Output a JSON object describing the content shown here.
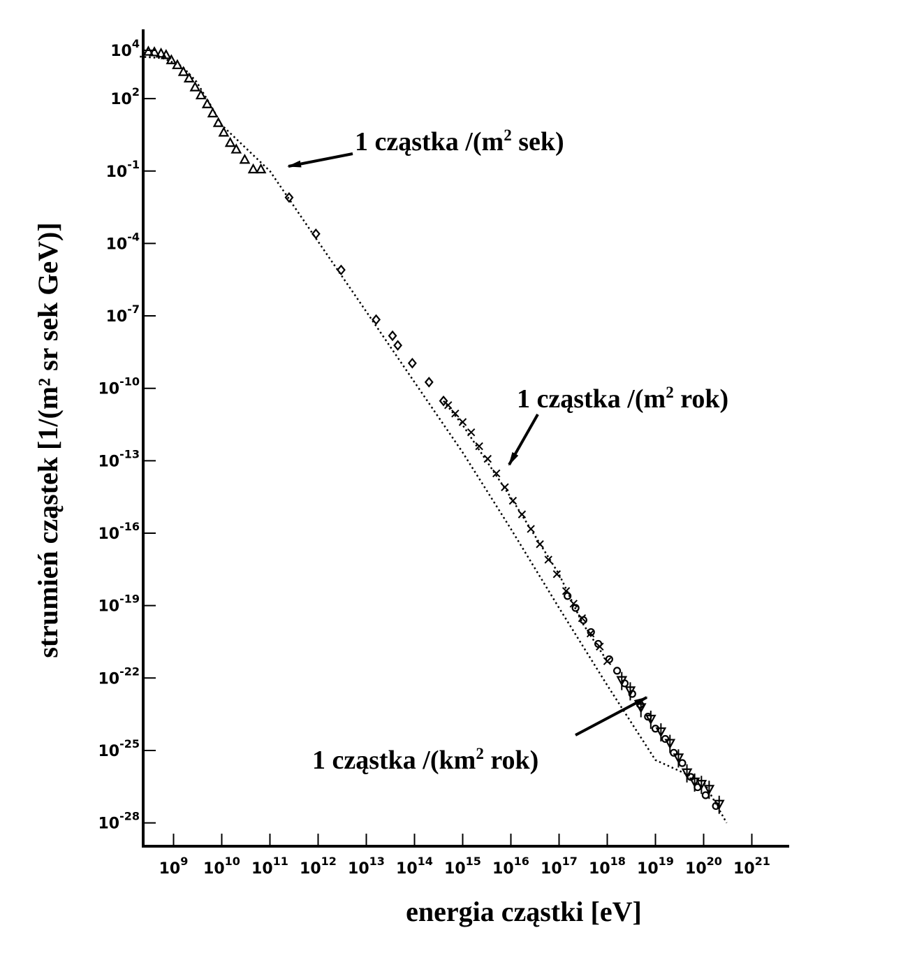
{
  "chart_data": {
    "type": "scatter",
    "title": "",
    "xlabel": "energia cząstki [eV]",
    "ylabel": "strumień cząstek [1/(m² sr sek GeV)]",
    "xscale": "log",
    "yscale": "log",
    "xlim": [
      200000000.0,
      1e+21
    ],
    "ylim": [
      1e-29,
      100000.0
    ],
    "grid": false,
    "legend": "none",
    "x_ticks": [
      {
        "value": 1000000000.0,
        "base": "10",
        "exp": "9"
      },
      {
        "value": 10000000000.0,
        "base": "10",
        "exp": "10"
      },
      {
        "value": 100000000000.0,
        "base": "10",
        "exp": "11"
      },
      {
        "value": 1000000000000.0,
        "base": "10",
        "exp": "12"
      },
      {
        "value": 10000000000000.0,
        "base": "10",
        "exp": "13"
      },
      {
        "value": 100000000000000.0,
        "base": "10",
        "exp": "14"
      },
      {
        "value": 1000000000000000.0,
        "base": "10",
        "exp": "15"
      },
      {
        "value": 1e+16,
        "base": "10",
        "exp": "16"
      },
      {
        "value": 1e+17,
        "base": "10",
        "exp": "17"
      },
      {
        "value": 1e+18,
        "base": "10",
        "exp": "18"
      },
      {
        "value": 1e+19,
        "base": "10",
        "exp": "19"
      },
      {
        "value": 1e+20,
        "base": "10",
        "exp": "20"
      },
      {
        "value": 1e+21,
        "base": "10",
        "exp": "21"
      }
    ],
    "y_ticks": [
      {
        "value": 10000.0,
        "base": "10",
        "exp": "4"
      },
      {
        "value": 100.0,
        "base": "10",
        "exp": "2"
      },
      {
        "value": 0.1,
        "base": "10",
        "exp": "-1"
      },
      {
        "value": 0.0001,
        "base": "10",
        "exp": "-4"
      },
      {
        "value": 1e-07,
        "base": "10",
        "exp": "-7"
      },
      {
        "value": 1e-10,
        "base": "10",
        "exp": "-10"
      },
      {
        "value": 1e-13,
        "base": "10",
        "exp": "-13"
      },
      {
        "value": 1e-16,
        "base": "10",
        "exp": "-16"
      },
      {
        "value": 1e-19,
        "base": "10",
        "exp": "-19"
      },
      {
        "value": 1e-22,
        "base": "10",
        "exp": "-22"
      },
      {
        "value": 1e-25,
        "base": "10",
        "exp": "-25"
      },
      {
        "value": 1e-28,
        "base": "10",
        "exp": "-28"
      }
    ],
    "series": [
      {
        "marker": "triangle",
        "points": [
          [
            300000000.0,
            9000
          ],
          [
            400000000.0,
            8500
          ],
          [
            550000000.0,
            7500
          ],
          [
            700000000.0,
            6500
          ],
          [
            900000000.0,
            4000
          ],
          [
            1200000000.0,
            2500
          ],
          [
            1600000000.0,
            1300
          ],
          [
            2100000000.0,
            700
          ],
          [
            2800000000.0,
            300
          ],
          [
            3700000000.0,
            140
          ],
          [
            5000000000.0,
            60
          ],
          [
            6500000000.0,
            25
          ],
          [
            8500000000.0,
            10
          ],
          [
            11000000000.0,
            4
          ],
          [
            15000000000.0,
            1.5
          ],
          [
            20000000000.0,
            0.8
          ],
          [
            30000000000.0,
            0.3
          ],
          [
            45000000000.0,
            0.12
          ],
          [
            65000000000.0,
            0.12
          ]
        ]
      },
      {
        "marker": "diamond",
        "points": [
          [
            250000000000.0,
            0.008
          ],
          [
            900000000000.0,
            0.00025
          ],
          [
            3000000000000.0,
            8e-06
          ],
          [
            16000000000000.0,
            7e-08
          ],
          [
            35000000000000.0,
            1.5e-08
          ],
          [
            45000000000000.0,
            6e-09
          ],
          [
            90000000000000.0,
            1.1e-09
          ],
          [
            200000000000000.0,
            1.8e-10
          ],
          [
            400000000000000.0,
            3e-11
          ]
        ]
      },
      {
        "marker": "cross",
        "points": [
          [
            500000000000000.0,
            2e-11
          ],
          [
            700000000000000.0,
            9e-12
          ],
          [
            1000000000000000.0,
            4e-12
          ],
          [
            1500000000000000.0,
            1.5e-12
          ],
          [
            2200000000000000.0,
            4e-13
          ],
          [
            3300000000000000.0,
            1.2e-13
          ],
          [
            5000000000000000.0,
            3e-14
          ],
          [
            7500000000000000.0,
            8e-15
          ],
          [
            1.1e+16,
            2.2e-15
          ],
          [
            1.7e+16,
            6e-16
          ],
          [
            2.6e+16,
            1.5e-16
          ],
          [
            4e+16,
            3.5e-17
          ],
          [
            6e+16,
            8e-18
          ],
          [
            9e+16,
            2e-18
          ],
          [
            1.4e+17,
            4e-19
          ],
          [
            2e+17,
            1.2e-19
          ],
          [
            3e+17,
            3e-20
          ],
          [
            4.5e+17,
            7e-21
          ],
          [
            7e+17,
            2e-21
          ],
          [
            1e+18,
            5e-22
          ]
        ]
      },
      {
        "marker": "circle",
        "points": [
          [
            1.5e+17,
            2.5e-19
          ],
          [
            2.2e+17,
            8e-20
          ],
          [
            3.2e+17,
            2.5e-20
          ],
          [
            4.6e+17,
            8e-21
          ],
          [
            6.5e+17,
            2.6e-21
          ],
          [
            1.1e+18,
            6e-22
          ],
          [
            1.6e+18,
            2e-22
          ],
          [
            2.3e+18,
            6e-23
          ],
          [
            3.3e+18,
            2.2e-23
          ],
          [
            4.8e+18,
            8e-24
          ],
          [
            7e+18,
            2.5e-24
          ],
          [
            1e+19,
            8e-25
          ],
          [
            1.6e+19,
            3e-25
          ],
          [
            2.4e+19,
            8e-26
          ],
          [
            3.6e+19,
            3e-26
          ],
          [
            5.4e+19,
            8e-27
          ],
          [
            7.5e+19,
            3e-27
          ],
          [
            1.1e+20,
            1.4e-27
          ],
          [
            1.8e+20,
            5e-28
          ]
        ]
      },
      {
        "marker": "triangle-down",
        "points": [
          [
            2e+18,
            8e-23
          ],
          [
            3e+18,
            3e-23
          ],
          [
            5e+18,
            6e-24
          ],
          [
            8e+18,
            2e-24
          ],
          [
            1.3e+19,
            6e-25
          ],
          [
            2e+19,
            2e-25
          ],
          [
            3e+19,
            5e-26
          ],
          [
            4.5e+19,
            1.2e-26
          ],
          [
            6.5e+19,
            5e-27
          ],
          [
            9e+19,
            4e-27
          ],
          [
            1.3e+20,
            2.5e-27
          ],
          [
            2.1e+20,
            6e-28
          ]
        ]
      }
    ],
    "fit_lines": [
      {
        "style": "dotted",
        "points": [
          [
            200000000.0,
            5500
          ],
          [
            600000000.0,
            4700
          ],
          [
            1500000000.0,
            2200
          ],
          [
            3000000000.0,
            500
          ],
          [
            6000000000.0,
            50
          ],
          [
            10000000000.0,
            8
          ],
          [
            100000000000.0,
            0.1
          ],
          [
            1000000000000.0,
            0.00012
          ],
          [
            10000000000000.0,
            1.5e-07
          ],
          [
            100000000000000.0,
            1.8e-10
          ],
          [
            1000000000000000.0,
            2.2e-13
          ],
          [
            1e+16,
            1.5e-16
          ],
          [
            1e+17,
            8e-20
          ],
          [
            1e+18,
            5e-23
          ],
          [
            1e+19,
            4e-26
          ],
          [
            1e+20,
            5e-27
          ],
          [
            3e+20,
            1e-28
          ]
        ]
      },
      {
        "style": "dotted",
        "points": [
          [
            400000000000000.0,
            3e-11
          ],
          [
            1000000000000000.0,
            3e-12
          ],
          [
            1e+16,
            3e-15
          ],
          [
            1e+17,
            2e-18
          ],
          [
            3e+17,
            2e-20
          ],
          [
            1e+18,
            5e-22
          ]
        ]
      }
    ]
  },
  "annotations": [
    {
      "prefix": "1 cząstka /(m",
      "sup": "2",
      "suffix": " sek)",
      "x": 80000000000.0,
      "y": 0.1
    },
    {
      "prefix": "1 cząstka /(m",
      "sup": "2",
      "suffix": " rok)",
      "x": 6000000000000000.0,
      "y": 1.5e-14
    },
    {
      "prefix": "1 cząstka /(km",
      "sup": "2",
      "suffix": " rok)",
      "x": 5e+18,
      "y": 4e-24
    }
  ]
}
